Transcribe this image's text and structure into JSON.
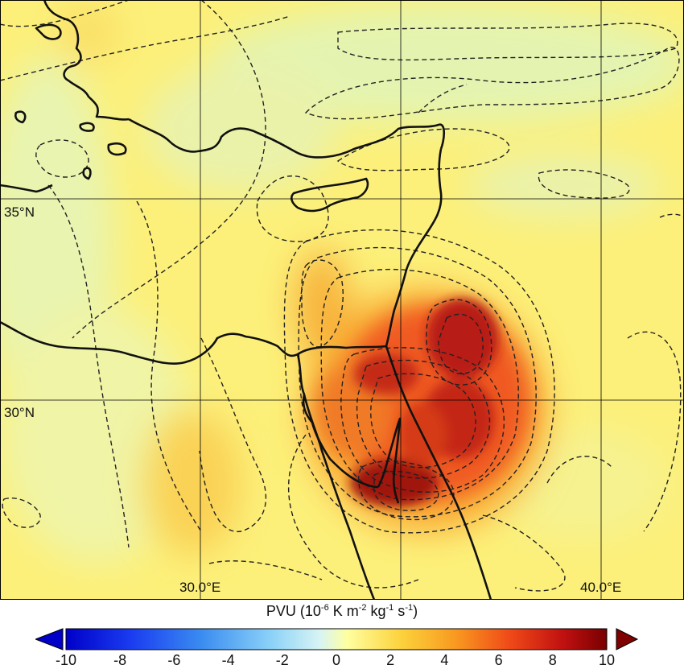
{
  "map": {
    "lat_labels": [
      "35°N",
      "30°N"
    ],
    "lon_labels": [
      "30.0°E",
      "40.0°E"
    ]
  },
  "colorbar": {
    "title_prefix": "PVU (10",
    "title_parts": [
      "-6",
      " K m",
      "-2",
      " kg",
      "-1",
      " s",
      "-1",
      ")"
    ],
    "ticks": [
      "-10",
      "-8",
      "-6",
      "-4",
      "-2",
      "0",
      "2",
      "4",
      "6",
      "8",
      "10"
    ],
    "range": [
      -10,
      10
    ],
    "colors": {
      "min": "#0000c8",
      "neutral": "#ffffa0",
      "max": "#800000"
    }
  }
}
